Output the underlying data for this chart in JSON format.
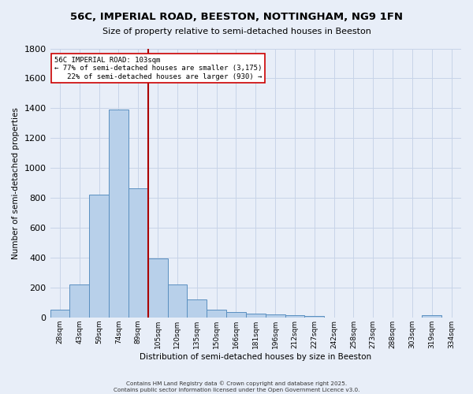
{
  "title": "56C, IMPERIAL ROAD, BEESTON, NOTTINGHAM, NG9 1FN",
  "subtitle": "Size of property relative to semi-detached houses in Beeston",
  "xlabel": "Distribution of semi-detached houses by size in Beeston",
  "ylabel": "Number of semi-detached properties",
  "categories": [
    "28sqm",
    "43sqm",
    "59sqm",
    "74sqm",
    "89sqm",
    "105sqm",
    "120sqm",
    "135sqm",
    "150sqm",
    "166sqm",
    "181sqm",
    "196sqm",
    "212sqm",
    "227sqm",
    "242sqm",
    "258sqm",
    "273sqm",
    "288sqm",
    "303sqm",
    "319sqm",
    "334sqm"
  ],
  "values": [
    50,
    220,
    820,
    1390,
    865,
    395,
    220,
    120,
    50,
    35,
    25,
    20,
    15,
    10,
    0,
    0,
    0,
    0,
    0,
    15,
    0
  ],
  "bar_color": "#b8d0ea",
  "bar_edge_color": "#5a8fc0",
  "grid_color": "#c8d4e8",
  "background_color": "#e8eef8",
  "property_line_color": "#aa0000",
  "property_bar_index": 5,
  "annotation_text": "56C IMPERIAL ROAD: 103sqm\n← 77% of semi-detached houses are smaller (3,175)\n   22% of semi-detached houses are larger (930) →",
  "annotation_box_color": "#ffffff",
  "annotation_box_edge": "#cc0000",
  "footer_line1": "Contains HM Land Registry data © Crown copyright and database right 2025.",
  "footer_line2": "Contains public sector information licensed under the Open Government Licence v3.0.",
  "ylim": [
    0,
    1800
  ],
  "yticks": [
    0,
    200,
    400,
    600,
    800,
    1000,
    1200,
    1400,
    1600,
    1800
  ]
}
